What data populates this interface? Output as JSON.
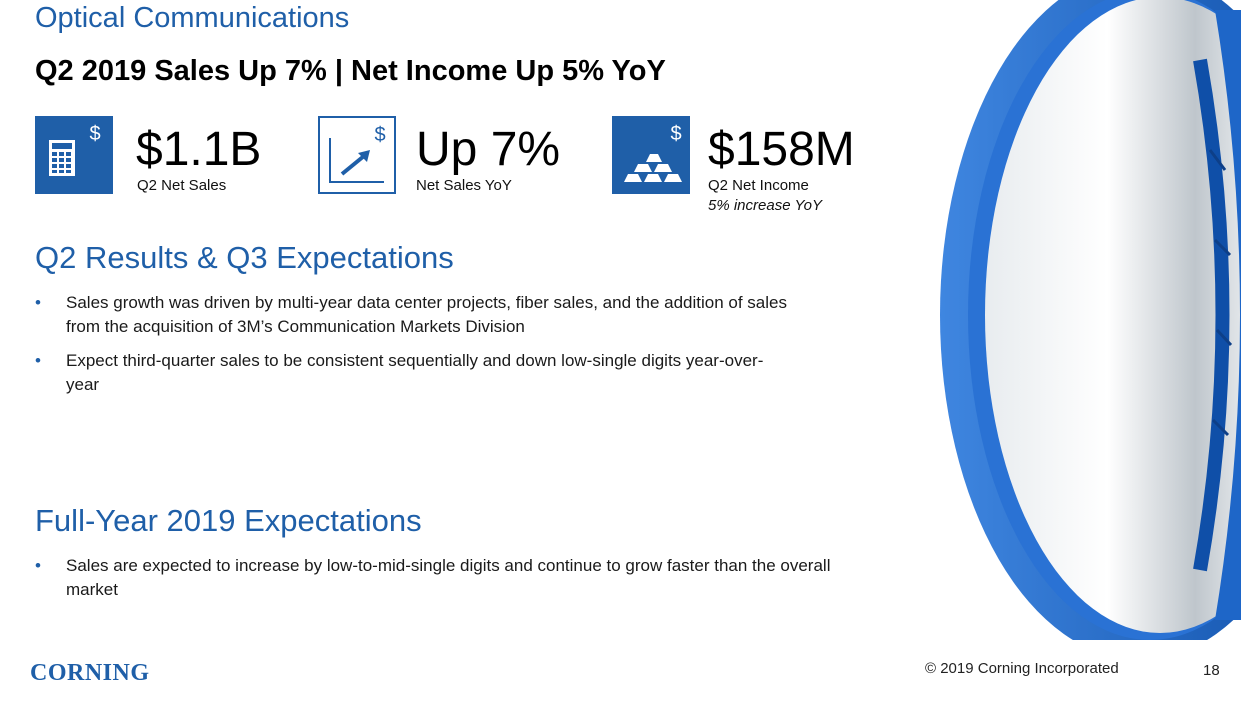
{
  "header": {
    "title": "Optical Communications",
    "subtitle": "Q2 2019 Sales Up 7% | Net Income Up 5% YoY"
  },
  "kpis": [
    {
      "icon": "calculator-dollar-icon",
      "value": "$1.1B",
      "label": "Q2 Net Sales",
      "note": ""
    },
    {
      "icon": "trend-up-dollar-icon",
      "value": "Up 7%",
      "label": "Net Sales YoY",
      "note": ""
    },
    {
      "icon": "gold-bars-dollar-icon",
      "value": "$158M",
      "label": "Q2 Net Income",
      "note": "5% increase YoY"
    }
  ],
  "sections": [
    {
      "heading": "Q2 Results & Q3 Expectations",
      "bullets": [
        "Sales growth was driven by multi-year data center projects, fiber sales, and the addition of sales from the acquisition of 3M’s Communication  Markets Division",
        "Expect third-quarter sales to be consistent sequentially and down low-single digits year-over-year"
      ]
    },
    {
      "heading": "Full-Year 2019 Expectations",
      "bullets": [
        "Sales are expected to increase by low-to-mid-single  digits and continue to grow faster than the overall market"
      ]
    }
  ],
  "footer": {
    "logo": "CORNING",
    "copyright": "© 2019 Corning Incorporated",
    "page": "18"
  },
  "bullet_symbol": "•",
  "colors": {
    "accent": "#1f5fa8",
    "spool": "#1e66c8"
  }
}
